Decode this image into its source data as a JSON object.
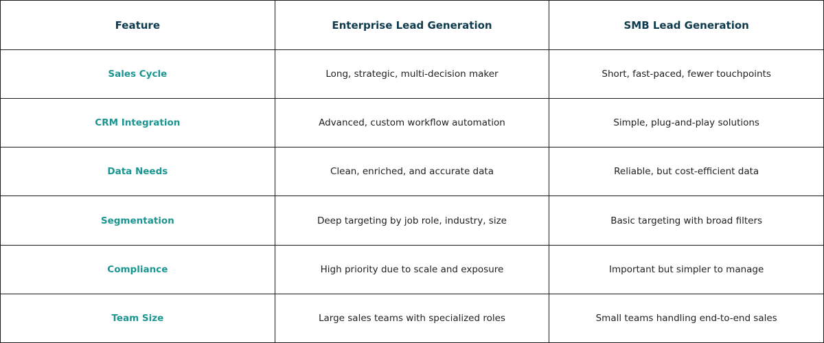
{
  "table": {
    "header": [
      "Feature",
      "Enterprise Lead Generation",
      "SMB Lead Generation"
    ],
    "rows": [
      [
        "Sales Cycle",
        "Long, strategic, multi-decision maker",
        "Short, fast-paced, fewer touchpoints"
      ],
      [
        "CRM Integration",
        "Advanced, custom workflow automation",
        "Simple, plug-and-play solutions"
      ],
      [
        "Data Needs",
        "Clean, enriched, and accurate data",
        "Reliable, but cost-efficient data"
      ],
      [
        "Segmentation",
        "Deep targeting by job role, industry, size",
        "Basic targeting with broad filters"
      ],
      [
        "Compliance",
        "High priority due to scale and exposure",
        "Important but simpler to manage"
      ],
      [
        "Team Size",
        "Large sales teams with specialized roles",
        "Small teams handling end-to-end sales"
      ]
    ]
  }
}
